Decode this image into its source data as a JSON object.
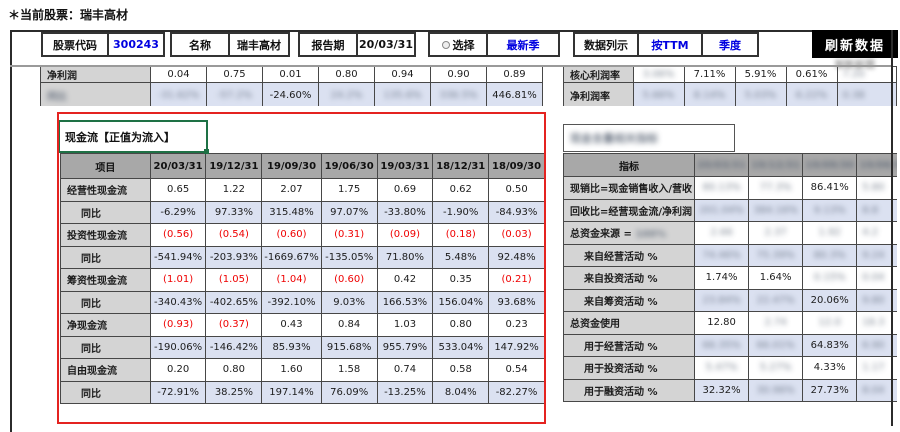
{
  "page": {
    "stock_label": "＊当前股票：瑞丰高材"
  },
  "toolbar": {
    "code_label": "股票代码",
    "code_value": "300243",
    "name_label": "名称",
    "name_value": "瑞丰高材",
    "period_label": "报告期",
    "period_value": "20/03/31",
    "select_label": "选择",
    "select_value": "最新季",
    "display_label": "数据列示",
    "ttm_label": "按TTM",
    "quarter_label": "季度",
    "refresh_label": "刷新数据",
    "accent_blue": "#0000e0",
    "button_bg": "#000000"
  },
  "top_left_table": {
    "rows": [
      {
        "label": "净利润",
        "cells": [
          "0.04",
          "0.75",
          "0.01",
          "0.80",
          "0.94",
          "0.90",
          "0.89"
        ]
      },
      {
        "label": "同比",
        "label_blur": true,
        "shade": true,
        "cells": [
          {
            "t": "-31.62%",
            "b": true
          },
          {
            "t": "-57.2%",
            "b": true
          },
          {
            "t": "-24.60%"
          },
          {
            "t": "24.2%",
            "b": true
          },
          {
            "t": "135.6%",
            "b": true
          },
          {
            "t": "336.5%",
            "b": true
          },
          {
            "t": "446.81%"
          }
        ]
      }
    ]
  },
  "top_right_table": {
    "rows": [
      {
        "label": "核心利润率",
        "cells": [
          {
            "t": "3.06%",
            "b": true
          },
          {
            "t": "7.11%"
          },
          {
            "t": "5.91%"
          },
          {
            "t": "0.61%"
          },
          {
            "t": "7.20",
            "b": true
          }
        ]
      },
      {
        "label": "净利润率",
        "shade": true,
        "cells": [
          {
            "t": "5.66%",
            "b": true
          },
          {
            "t": "8.14%",
            "b": true
          },
          {
            "t": "5.03%",
            "b": true
          },
          {
            "t": "6.22%",
            "b": true
          },
          {
            "t": "0.38",
            "b": true
          }
        ]
      }
    ]
  },
  "cashflow": {
    "title": "现金流【正值为流入】",
    "headers": [
      "项目",
      "20/03/31",
      "19/12/31",
      "19/09/30",
      "19/06/30",
      "19/03/31",
      "18/12/31",
      "18/09/30"
    ],
    "highlight_border": "#e42320",
    "rows": [
      {
        "label": "经营性现金流",
        "cells": [
          "0.65",
          "1.22",
          "2.07",
          "1.75",
          "0.69",
          "0.62",
          "0.50"
        ]
      },
      {
        "label": "同比",
        "indent": true,
        "shade": true,
        "cells": [
          "-6.29%",
          "97.33%",
          "315.48%",
          "97.07%",
          "-33.80%",
          "-1.90%",
          "-84.93%"
        ]
      },
      {
        "label": "投资性现金流",
        "cells": [
          "(0.56)",
          "(0.54)",
          "(0.60)",
          "(0.31)",
          "(0.09)",
          "(0.18)",
          "(0.03)"
        ]
      },
      {
        "label": "同比",
        "indent": true,
        "shade": true,
        "cells": [
          "-541.94%",
          "-203.93%",
          "-1669.67%",
          "-135.05%",
          "71.80%",
          "5.48%",
          "92.48%"
        ]
      },
      {
        "label": "筹资性现金流",
        "cells": [
          "(1.01)",
          "(1.05)",
          "(1.04)",
          "(0.60)",
          "0.42",
          "0.35",
          "(0.21)"
        ]
      },
      {
        "label": "同比",
        "indent": true,
        "shade": true,
        "cells": [
          "-340.43%",
          "-402.65%",
          "-392.10%",
          "9.03%",
          "166.53%",
          "156.04%",
          "93.68%"
        ]
      },
      {
        "label": "净现金流",
        "cells": [
          "(0.93)",
          "(0.37)",
          "0.43",
          "0.84",
          "1.03",
          "0.80",
          "0.23"
        ]
      },
      {
        "label": "同比",
        "indent": true,
        "shade": true,
        "cells": [
          "-190.06%",
          "-146.42%",
          "85.93%",
          "915.68%",
          "955.79%",
          "533.04%",
          "147.92%"
        ]
      },
      {
        "label": "自由现金流",
        "cells": [
          "0.20",
          "0.80",
          "1.60",
          "1.58",
          "0.74",
          "0.58",
          "0.54"
        ]
      },
      {
        "label": "同比",
        "indent": true,
        "shade": true,
        "cells": [
          "-72.91%",
          "38.25%",
          "197.14%",
          "76.09%",
          "-13.25%",
          "8.04%",
          "-82.27%"
        ]
      }
    ]
  },
  "indicators": {
    "title": "现金含量相关指标",
    "title_blurred": true,
    "header_label": "指标",
    "header_dates": [
      {
        "t": "20/03/31",
        "b": true
      },
      {
        "t": "19/12/31",
        "b": true
      },
      {
        "t": "19/09/30",
        "b": true
      },
      {
        "t": "19/06/30",
        "b": true
      }
    ],
    "rows": [
      {
        "label": "现销比=现金销售收入/营收",
        "cells": [
          {
            "t": "80.13%",
            "b": true
          },
          {
            "t": "77.3%",
            "b": true
          },
          {
            "t": "86.41%"
          },
          {
            "t": "5.80",
            "b": true
          }
        ]
      },
      {
        "label": "回收比=经营现金流/净利润",
        "shade": true,
        "cells": [
          {
            "t": "201.04%",
            "b": true
          },
          {
            "t": "384.16%",
            "b": true
          },
          {
            "t": "9.13%",
            "b": true
          },
          {
            "t": "8.8",
            "b": true
          }
        ]
      },
      {
        "label": "总资金来源 = ",
        "label_suffix": "100%",
        "suffix_blur": true,
        "cells": [
          {
            "t": "2.66",
            "b": true
          },
          {
            "t": "2.37",
            "b": true
          },
          {
            "t": "1.92",
            "b": true
          },
          {
            "t": "4.2",
            "b": true
          }
        ]
      },
      {
        "label": "来自经营活动 %",
        "indent": true,
        "shade": true,
        "cells": [
          {
            "t": "74.46%",
            "b": true
          },
          {
            "t": "75.39%",
            "b": true
          },
          {
            "t": "80.3%",
            "b": true
          },
          {
            "t": "9.24",
            "b": true
          }
        ]
      },
      {
        "label": "来自投资活动 %",
        "indent": true,
        "cells": [
          {
            "t": "1.74%"
          },
          {
            "t": "1.64%"
          },
          {
            "t": "0.15%",
            "b": true
          },
          {
            "t": "0.04",
            "b": true
          }
        ]
      },
      {
        "label": "来自筹资活动 %",
        "indent": true,
        "shade": true,
        "cells": [
          {
            "t": "23.84%",
            "b": true
          },
          {
            "t": "22.47%",
            "b": true
          },
          {
            "t": "20.06%"
          },
          {
            "t": "9.80",
            "b": true
          }
        ]
      },
      {
        "label": "总资金使用",
        "cells": [
          {
            "t": "12.80"
          },
          {
            "t": "2.74",
            "b": true
          },
          {
            "t": "12.0",
            "b": true
          },
          {
            "t": "18.3",
            "b": true
          }
        ]
      },
      {
        "label": "用于经营活动 %",
        "indent": true,
        "shade": true,
        "cells": [
          {
            "t": "66.35%",
            "b": true
          },
          {
            "t": "66.01%",
            "b": true
          },
          {
            "t": "64.83%"
          },
          {
            "t": "6.90",
            "b": true
          }
        ]
      },
      {
        "label": "用于投资活动 %",
        "indent": true,
        "cells": [
          {
            "t": "5.47%",
            "b": true
          },
          {
            "t": "5.27%",
            "b": true
          },
          {
            "t": "4.33%"
          },
          {
            "t": "1.17",
            "b": true
          }
        ]
      },
      {
        "label": "用于融资活动 %",
        "indent": true,
        "shade": true,
        "cells": [
          {
            "t": "32.32%"
          },
          {
            "t": "30.96%",
            "b": true
          },
          {
            "t": "27.73%"
          },
          {
            "t": "8.04",
            "b": true
          }
        ]
      }
    ]
  },
  "colors": {
    "shade_row": "#dbe1f1",
    "header_gray": "#a8a8a8",
    "label_gray": "#d4d4d4",
    "negative_red": "#ef0000"
  }
}
